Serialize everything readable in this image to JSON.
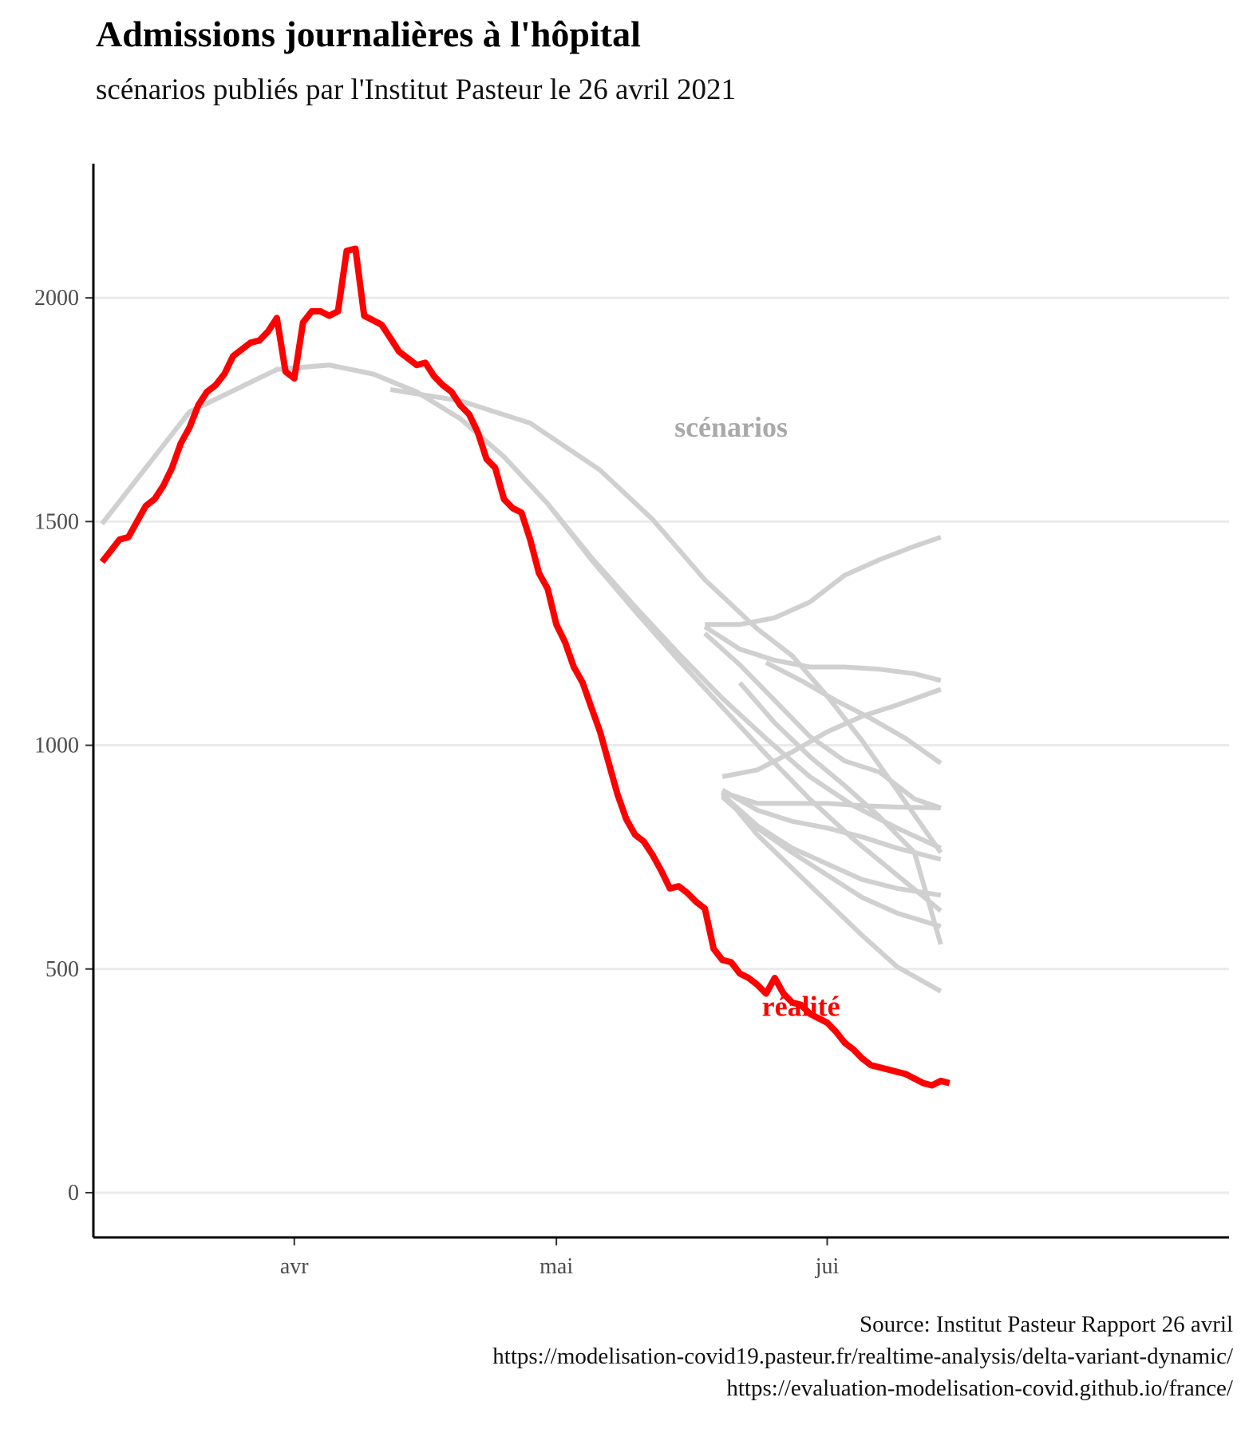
{
  "chart_data": {
    "type": "line",
    "title": "Admissions journalières à l'hôpital",
    "subtitle": "scénarios publiés par l'Institut Pasteur le 26 avril 2021",
    "ylim": [
      -100,
      2300
    ],
    "xlim": [
      "2021-03-09",
      "2021-07-17"
    ],
    "y_ticks": [
      0,
      500,
      1000,
      1500,
      2000
    ],
    "x_ticks": [
      {
        "date": "2021-04-01",
        "label": "avr"
      },
      {
        "date": "2021-05-01",
        "label": "mai"
      },
      {
        "date": "2021-06-01",
        "label": "jui"
      }
    ],
    "grid": "horizontal major",
    "annotations": [
      {
        "text": "scénarios",
        "date": "2021-05-21",
        "y": 1690,
        "color": "#a9a9a9"
      },
      {
        "text": "réalité",
        "date": "2021-05-29",
        "y": 395,
        "color": "#ff0000"
      }
    ],
    "caption": [
      "Source: Institut Pasteur Rapport 26 avril",
      "https://modelisation-covid19.pasteur.fr/realtime-analysis/delta-variant-dynamic/",
      "https://evaluation-modelisation-covid.github.io/france/"
    ],
    "colors": {
      "reality": "#ff0000",
      "scenarios": "#d0d0d0",
      "grid": "#ebebeb",
      "axis": "#000000"
    },
    "series": [
      {
        "group": "réalité",
        "color": "#ff0000",
        "x": [
          "2021-03-10",
          "2021-03-11",
          "2021-03-12",
          "2021-03-13",
          "2021-03-14",
          "2021-03-15",
          "2021-03-16",
          "2021-03-17",
          "2021-03-18",
          "2021-03-19",
          "2021-03-20",
          "2021-03-21",
          "2021-03-22",
          "2021-03-23",
          "2021-03-24",
          "2021-03-25",
          "2021-03-26",
          "2021-03-27",
          "2021-03-28",
          "2021-03-29",
          "2021-03-30",
          "2021-03-31",
          "2021-04-01",
          "2021-04-02",
          "2021-04-03",
          "2021-04-04",
          "2021-04-05",
          "2021-04-06",
          "2021-04-07",
          "2021-04-08",
          "2021-04-09",
          "2021-04-10",
          "2021-04-11",
          "2021-04-12",
          "2021-04-13",
          "2021-04-14",
          "2021-04-15",
          "2021-04-16",
          "2021-04-17",
          "2021-04-18",
          "2021-04-19",
          "2021-04-20",
          "2021-04-21",
          "2021-04-22",
          "2021-04-23",
          "2021-04-24",
          "2021-04-25",
          "2021-04-26",
          "2021-04-27",
          "2021-04-28",
          "2021-04-29",
          "2021-04-30",
          "2021-05-01",
          "2021-05-02",
          "2021-05-03",
          "2021-05-04",
          "2021-05-05",
          "2021-05-06",
          "2021-05-07",
          "2021-05-08",
          "2021-05-09",
          "2021-05-10",
          "2021-05-11",
          "2021-05-12",
          "2021-05-13",
          "2021-05-14",
          "2021-05-15",
          "2021-05-16",
          "2021-05-17",
          "2021-05-18",
          "2021-05-19",
          "2021-05-20",
          "2021-05-21",
          "2021-05-22",
          "2021-05-23",
          "2021-05-24",
          "2021-05-25",
          "2021-05-26",
          "2021-05-27",
          "2021-05-28",
          "2021-05-29",
          "2021-05-30",
          "2021-05-31",
          "2021-06-01",
          "2021-06-02",
          "2021-06-03",
          "2021-06-04",
          "2021-06-05",
          "2021-06-06",
          "2021-06-07",
          "2021-06-08",
          "2021-06-09",
          "2021-06-10",
          "2021-06-11",
          "2021-06-12",
          "2021-06-13",
          "2021-06-14",
          "2021-06-15"
        ],
        "values": [
          1410,
          1435,
          1460,
          1465,
          1500,
          1535,
          1550,
          1580,
          1620,
          1675,
          1710,
          1760,
          1790,
          1805,
          1830,
          1870,
          1885,
          1900,
          1905,
          1925,
          1955,
          1835,
          1820,
          1945,
          1970,
          1970,
          1960,
          1970,
          2105,
          2110,
          1960,
          1950,
          1940,
          1910,
          1880,
          1865,
          1850,
          1855,
          1825,
          1805,
          1790,
          1760,
          1740,
          1700,
          1640,
          1620,
          1550,
          1530,
          1520,
          1460,
          1385,
          1350,
          1270,
          1230,
          1175,
          1140,
          1085,
          1030,
          960,
          890,
          835,
          800,
          785,
          755,
          720,
          680,
          685,
          670,
          650,
          635,
          545,
          520,
          515,
          490,
          480,
          465,
          445,
          480,
          445,
          425,
          420,
          400,
          390,
          380,
          360,
          335,
          320,
          300,
          285,
          280,
          275,
          270,
          265,
          255,
          245,
          240,
          250,
          245
        ]
      },
      {
        "group": "scénarios",
        "color": "#d0d0d0",
        "x": [
          "2021-03-10",
          "2021-03-20",
          "2021-03-30",
          "2021-04-05",
          "2021-04-10",
          "2021-04-15",
          "2021-04-20",
          "2021-04-25",
          "2021-04-30",
          "2021-05-05",
          "2021-05-10",
          "2021-05-15",
          "2021-05-20",
          "2021-05-25",
          "2021-05-30",
          "2021-06-04",
          "2021-06-09",
          "2021-06-14"
        ],
        "values": [
          1495,
          1745,
          1840,
          1850,
          1830,
          1790,
          1730,
          1645,
          1540,
          1415,
          1300,
          1190,
          1085,
          980,
          880,
          790,
          710,
          630
        ]
      },
      {
        "group": "scénarios",
        "color": "#d0d0d0",
        "x": [
          "2021-03-10",
          "2021-03-20",
          "2021-03-30",
          "2021-04-05",
          "2021-04-10",
          "2021-04-15",
          "2021-04-20",
          "2021-04-25",
          "2021-04-30",
          "2021-05-05",
          "2021-05-10",
          "2021-05-15",
          "2021-05-20",
          "2021-05-25",
          "2021-05-30",
          "2021-06-04",
          "2021-06-09",
          "2021-06-14"
        ],
        "values": [
          1495,
          1745,
          1840,
          1850,
          1830,
          1790,
          1730,
          1645,
          1540,
          1420,
          1310,
          1205,
          1105,
          1015,
          930,
          865,
          815,
          770
        ]
      },
      {
        "group": "scénarios",
        "color": "#d0d0d0",
        "x": [
          "2021-04-12",
          "2021-04-20",
          "2021-04-28",
          "2021-05-06",
          "2021-05-12",
          "2021-05-18",
          "2021-05-24",
          "2021-05-28",
          "2021-06-01",
          "2021-06-05",
          "2021-06-09",
          "2021-06-14"
        ],
        "values": [
          1795,
          1770,
          1720,
          1615,
          1505,
          1370,
          1260,
          1200,
          1110,
          1010,
          900,
          760
        ]
      },
      {
        "group": "scénarios",
        "color": "#d0d0d0",
        "x": [
          "2021-05-18",
          "2021-05-22",
          "2021-05-26",
          "2021-05-30",
          "2021-06-03",
          "2021-06-07",
          "2021-06-11",
          "2021-06-14"
        ],
        "values": [
          1270,
          1270,
          1285,
          1320,
          1380,
          1415,
          1445,
          1465
        ]
      },
      {
        "group": "scénarios",
        "color": "#d0d0d0",
        "x": [
          "2021-05-18",
          "2021-05-22",
          "2021-05-26",
          "2021-05-30",
          "2021-06-03",
          "2021-06-07",
          "2021-06-11",
          "2021-06-14"
        ],
        "values": [
          1265,
          1215,
          1190,
          1175,
          1175,
          1170,
          1160,
          1145
        ]
      },
      {
        "group": "scénarios",
        "color": "#d0d0d0",
        "x": [
          "2021-05-25",
          "2021-05-29",
          "2021-06-02",
          "2021-06-06",
          "2021-06-10",
          "2021-06-14"
        ],
        "values": [
          1185,
          1145,
          1100,
          1060,
          1015,
          960
        ]
      },
      {
        "group": "scénarios",
        "color": "#d0d0d0",
        "x": [
          "2021-05-18",
          "2021-05-22",
          "2021-05-26",
          "2021-05-30",
          "2021-06-03",
          "2021-06-07",
          "2021-06-11",
          "2021-06-14"
        ],
        "values": [
          1250,
          1180,
          1100,
          1020,
          965,
          940,
          880,
          860
        ]
      },
      {
        "group": "scénarios",
        "color": "#d0d0d0",
        "x": [
          "2021-05-22",
          "2021-05-26",
          "2021-05-30",
          "2021-06-03",
          "2021-06-07",
          "2021-06-11",
          "2021-06-14"
        ],
        "values": [
          1140,
          1050,
          975,
          910,
          840,
          760,
          555
        ]
      },
      {
        "group": "scénarios",
        "color": "#d0d0d0",
        "x": [
          "2021-05-20",
          "2021-05-24",
          "2021-05-28",
          "2021-06-01",
          "2021-06-05",
          "2021-06-09",
          "2021-06-14"
        ],
        "values": [
          930,
          945,
          985,
          1030,
          1065,
          1090,
          1125
        ]
      },
      {
        "group": "scénarios",
        "color": "#d0d0d0",
        "x": [
          "2021-05-20",
          "2021-05-24",
          "2021-05-28",
          "2021-06-01",
          "2021-06-05",
          "2021-06-09",
          "2021-06-14"
        ],
        "values": [
          895,
          870,
          870,
          870,
          865,
          862,
          860
        ]
      },
      {
        "group": "scénarios",
        "color": "#d0d0d0",
        "x": [
          "2021-05-20",
          "2021-05-24",
          "2021-05-28",
          "2021-06-01",
          "2021-06-05",
          "2021-06-09",
          "2021-06-14"
        ],
        "values": [
          900,
          855,
          830,
          815,
          795,
          770,
          745
        ]
      },
      {
        "group": "scénarios",
        "color": "#d0d0d0",
        "x": [
          "2021-05-20",
          "2021-05-24",
          "2021-05-28",
          "2021-06-01",
          "2021-06-05",
          "2021-06-09",
          "2021-06-14"
        ],
        "values": [
          890,
          820,
          770,
          735,
          700,
          680,
          665
        ]
      },
      {
        "group": "scénarios",
        "color": "#d0d0d0",
        "x": [
          "2021-05-20",
          "2021-05-24",
          "2021-05-28",
          "2021-06-01",
          "2021-06-05",
          "2021-06-09",
          "2021-06-14"
        ],
        "values": [
          885,
          815,
          760,
          710,
          660,
          625,
          595
        ]
      },
      {
        "group": "scénarios",
        "color": "#d0d0d0",
        "x": [
          "2021-05-20",
          "2021-05-24",
          "2021-05-28",
          "2021-06-01",
          "2021-06-05",
          "2021-06-09",
          "2021-06-14"
        ],
        "values": [
          895,
          800,
          725,
          650,
          575,
          505,
          450
        ]
      }
    ]
  }
}
